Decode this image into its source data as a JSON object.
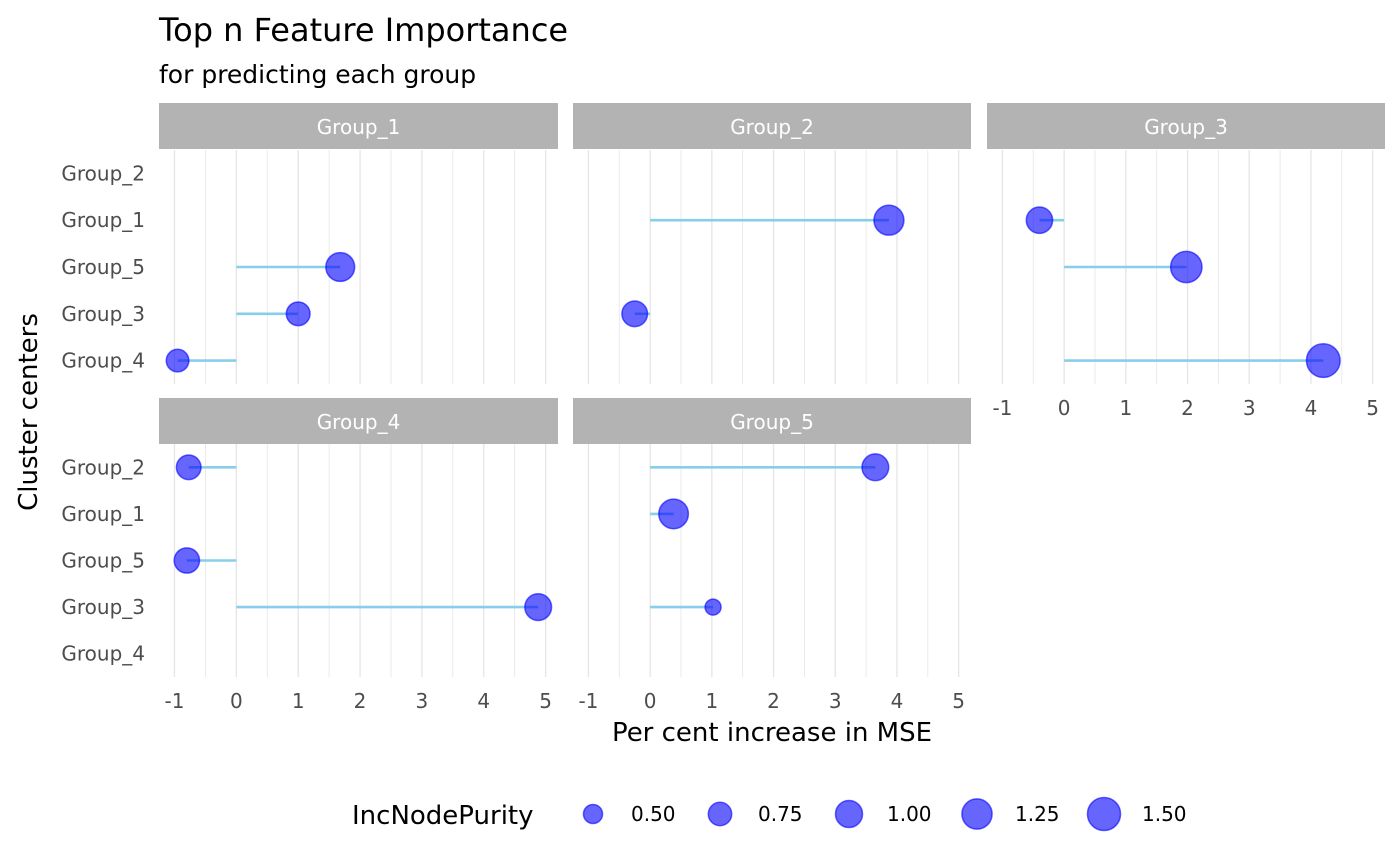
{
  "chart_data": {
    "type": "scatter",
    "subtype": "lollipop-faceted",
    "title": "Top n Feature Importance",
    "subtitle": "for predicting each group",
    "xlabel": "Per cent increase in MSE",
    "ylabel": "Cluster centers",
    "xlim": [
      -1.25,
      5.2
    ],
    "x_ticks": [
      -1,
      0,
      1,
      2,
      3,
      4,
      5
    ],
    "y_categories": [
      "Group_2",
      "Group_1",
      "Group_5",
      "Group_3",
      "Group_4"
    ],
    "grid": true,
    "legend": {
      "title": "IncNodePurity",
      "position": "bottom",
      "values": [
        0.5,
        0.75,
        1.0,
        1.25,
        1.5
      ],
      "labels": [
        "0.50",
        "0.75",
        "1.00",
        "1.25",
        "1.50"
      ]
    },
    "colors": {
      "point_fill": "#0000ff",
      "segment": "#87ceeb",
      "strip_bg": "#b3b3b3",
      "grid": "#e5e5e5"
    },
    "facets": [
      {
        "label": "Group_1",
        "points": [
          {
            "y": "Group_5",
            "x": 1.68,
            "size": 1.14
          },
          {
            "y": "Group_3",
            "x": 1.0,
            "size": 0.77
          },
          {
            "y": "Group_4",
            "x": -0.95,
            "size": 0.7
          }
        ]
      },
      {
        "label": "Group_2",
        "points": [
          {
            "y": "Group_1",
            "x": 3.87,
            "size": 1.23
          },
          {
            "y": "Group_3",
            "x": -0.25,
            "size": 0.9
          }
        ]
      },
      {
        "label": "Group_3",
        "points": [
          {
            "y": "Group_1",
            "x": -0.4,
            "size": 0.95
          },
          {
            "y": "Group_5",
            "x": 1.98,
            "size": 1.35
          },
          {
            "y": "Group_4",
            "x": 4.2,
            "size": 1.55
          }
        ]
      },
      {
        "label": "Group_4",
        "points": [
          {
            "y": "Group_2",
            "x": -0.77,
            "size": 0.83
          },
          {
            "y": "Group_5",
            "x": -0.8,
            "size": 0.88
          },
          {
            "y": "Group_3",
            "x": 4.88,
            "size": 0.98
          }
        ]
      },
      {
        "label": "Group_5",
        "points": [
          {
            "y": "Group_2",
            "x": 3.65,
            "size": 0.98
          },
          {
            "y": "Group_1",
            "x": 0.38,
            "size": 1.2
          },
          {
            "y": "Group_3",
            "x": 1.02,
            "size": 0.35
          }
        ]
      }
    ]
  }
}
